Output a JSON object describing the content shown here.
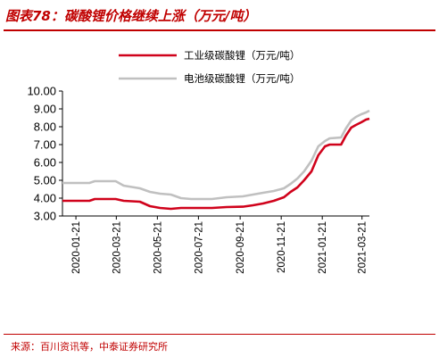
{
  "figure": {
    "title": "图表78：碳酸锂价格继续上涨（万元/吨）",
    "source": "来源：百川资讯等，中泰证券研究所"
  },
  "colors": {
    "accent": "#c00000",
    "industrial": "#d0021b",
    "battery": "#c0c0c0"
  },
  "chart_data": {
    "type": "line",
    "title": "",
    "xlabel": "",
    "ylabel": "",
    "ylim": [
      3.0,
      10.0
    ],
    "yticks": [
      "3.00",
      "4.00",
      "5.00",
      "6.00",
      "7.00",
      "8.00",
      "9.00",
      "10.00"
    ],
    "xticks": [
      "2020-01-21",
      "2020-03-21",
      "2020-05-21",
      "2020-07-21",
      "2020-09-21",
      "2020-11-21",
      "2021-01-21",
      "2021-03-21"
    ],
    "xrange": [
      "2020-01-01",
      "2021-04-01"
    ],
    "grid": false,
    "legend_position": "top-center",
    "series": [
      {
        "name": "工业级碳酸锂（万元/吨）",
        "color": "#d0021b",
        "points": [
          [
            "2020-01-01",
            3.85
          ],
          [
            "2020-02-10",
            3.85
          ],
          [
            "2020-02-18",
            3.95
          ],
          [
            "2020-03-20",
            3.95
          ],
          [
            "2020-04-01",
            3.85
          ],
          [
            "2020-04-25",
            3.8
          ],
          [
            "2020-05-10",
            3.55
          ],
          [
            "2020-05-25",
            3.45
          ],
          [
            "2020-06-10",
            3.4
          ],
          [
            "2020-06-25",
            3.45
          ],
          [
            "2020-07-10",
            3.45
          ],
          [
            "2020-08-10",
            3.45
          ],
          [
            "2020-09-01",
            3.5
          ],
          [
            "2020-09-25",
            3.52
          ],
          [
            "2020-10-10",
            3.6
          ],
          [
            "2020-10-25",
            3.7
          ],
          [
            "2020-11-10",
            3.85
          ],
          [
            "2020-11-25",
            4.05
          ],
          [
            "2020-12-05",
            4.35
          ],
          [
            "2020-12-15",
            4.6
          ],
          [
            "2020-12-25",
            5.0
          ],
          [
            "2021-01-05",
            5.5
          ],
          [
            "2021-01-15",
            6.4
          ],
          [
            "2021-01-25",
            6.9
          ],
          [
            "2021-02-01",
            7.0
          ],
          [
            "2021-02-18",
            7.0
          ],
          [
            "2021-02-25",
            7.5
          ],
          [
            "2021-03-05",
            7.95
          ],
          [
            "2021-03-12",
            8.1
          ],
          [
            "2021-03-20",
            8.25
          ],
          [
            "2021-03-27",
            8.4
          ],
          [
            "2021-04-01",
            8.45
          ]
        ]
      },
      {
        "name": "电池级碳酸锂（万元/吨）",
        "color": "#c0c0c0",
        "points": [
          [
            "2020-01-01",
            4.85
          ],
          [
            "2020-02-10",
            4.85
          ],
          [
            "2020-02-18",
            4.95
          ],
          [
            "2020-03-20",
            4.95
          ],
          [
            "2020-04-01",
            4.7
          ],
          [
            "2020-04-25",
            4.55
          ],
          [
            "2020-05-10",
            4.35
          ],
          [
            "2020-05-25",
            4.25
          ],
          [
            "2020-06-10",
            4.2
          ],
          [
            "2020-06-25",
            4.0
          ],
          [
            "2020-07-10",
            3.95
          ],
          [
            "2020-08-10",
            3.95
          ],
          [
            "2020-09-01",
            4.05
          ],
          [
            "2020-09-25",
            4.1
          ],
          [
            "2020-10-10",
            4.2
          ],
          [
            "2020-10-25",
            4.3
          ],
          [
            "2020-11-10",
            4.4
          ],
          [
            "2020-11-25",
            4.55
          ],
          [
            "2020-12-05",
            4.8
          ],
          [
            "2020-12-15",
            5.1
          ],
          [
            "2020-12-25",
            5.5
          ],
          [
            "2021-01-05",
            6.1
          ],
          [
            "2021-01-15",
            6.9
          ],
          [
            "2021-01-25",
            7.2
          ],
          [
            "2021-02-01",
            7.35
          ],
          [
            "2021-02-18",
            7.4
          ],
          [
            "2021-02-25",
            7.9
          ],
          [
            "2021-03-05",
            8.35
          ],
          [
            "2021-03-12",
            8.55
          ],
          [
            "2021-03-20",
            8.7
          ],
          [
            "2021-03-27",
            8.8
          ],
          [
            "2021-04-01",
            8.9
          ]
        ]
      }
    ]
  }
}
